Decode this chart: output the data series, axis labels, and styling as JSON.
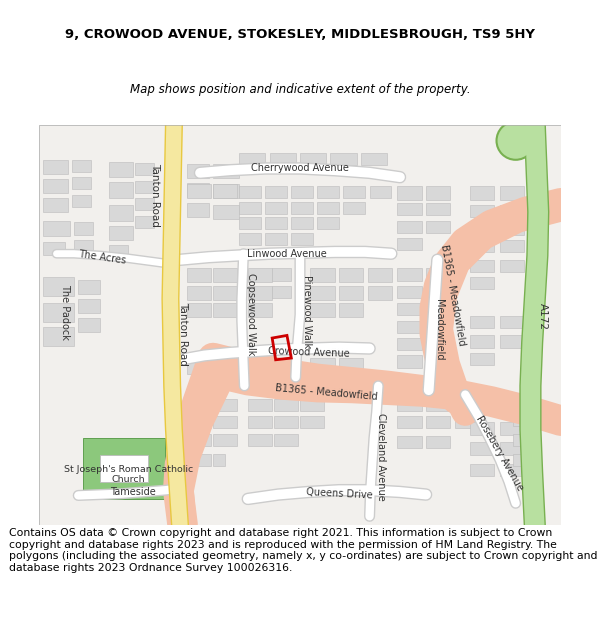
{
  "title": "9, CROWOOD AVENUE, STOKESLEY, MIDDLESBROUGH, TS9 5HY",
  "subtitle": "Map shows position and indicative extent of the property.",
  "footer": "Contains OS data © Crown copyright and database right 2021. This information is subject to Crown copyright and database rights 2023 and is reproduced with the permission of HM Land Registry. The polygons (including the associated geometry, namely x, y co-ordinates) are subject to Crown copyright and database rights 2023 Ordnance Survey 100026316.",
  "title_fontsize": 9.5,
  "subtitle_fontsize": 8.5,
  "footer_fontsize": 7.8,
  "map_bg": "#f2f0ed",
  "building_face": "#d8d8d8",
  "building_edge": "#bbbbbb",
  "road_yellow_fill": "#f5e8a0",
  "road_yellow_edge": "#e8c840",
  "road_salmon_fill": "#f5c0a8",
  "road_green_fill": "#b8e0a0",
  "road_green_edge": "#78b050",
  "road_white": "#ffffff",
  "road_white_edge": "#cccccc",
  "property_edge": "#cc0000",
  "green_fill": "#8cc87c",
  "green_edge": "#60a050"
}
